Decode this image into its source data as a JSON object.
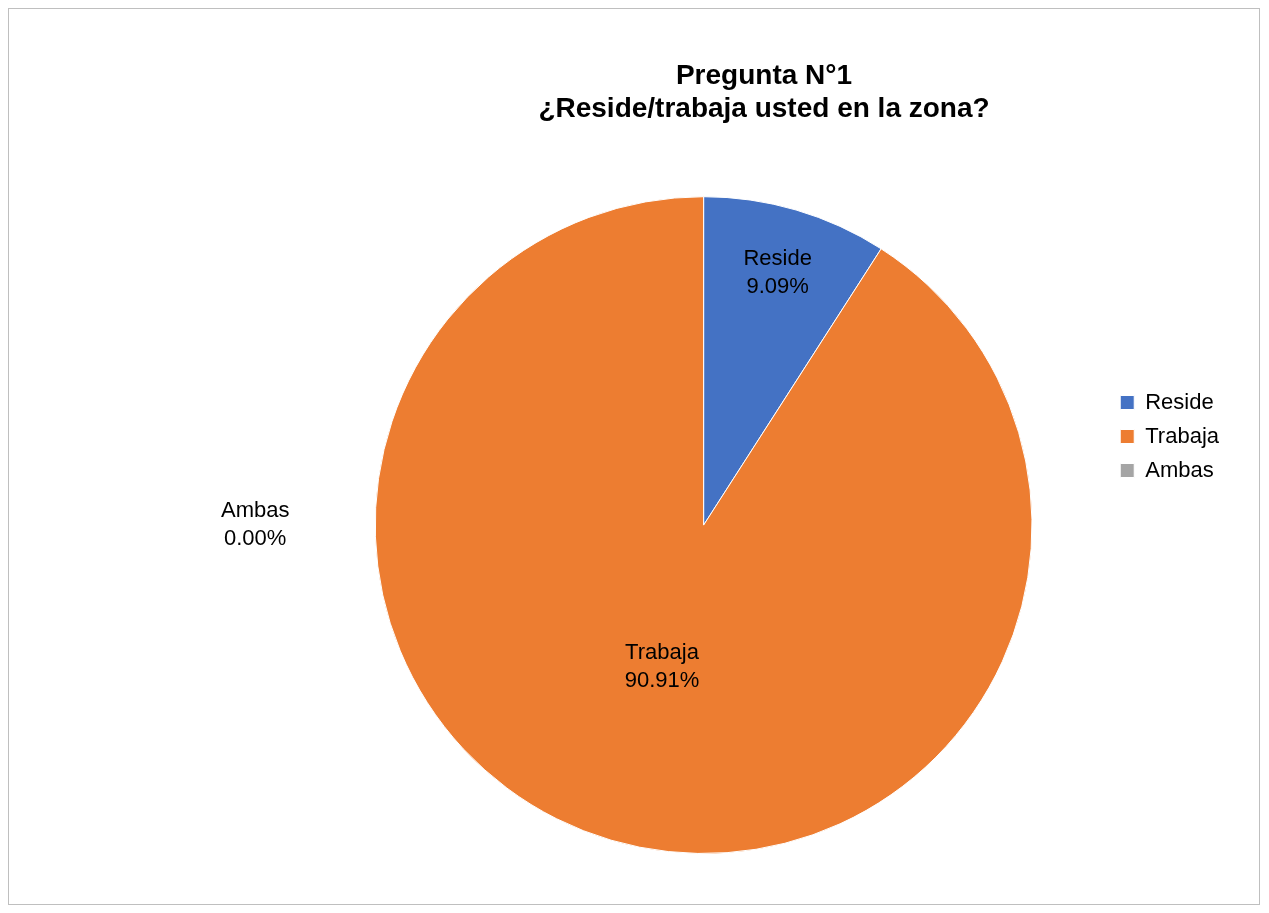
{
  "chart_data": {
    "type": "pie",
    "title": "Pregunta N°1\n¿Reside/trabaja usted en la zona?",
    "categories": [
      "Reside",
      "Trabaja",
      "Ambas"
    ],
    "values": [
      9.09,
      90.91,
      0
    ],
    "colors": [
      "#4472c4",
      "#ed7d31",
      "#a5a5a5"
    ],
    "value_labels": [
      "9.09%",
      "90.91%",
      "0.00%"
    ],
    "legend": "right"
  }
}
